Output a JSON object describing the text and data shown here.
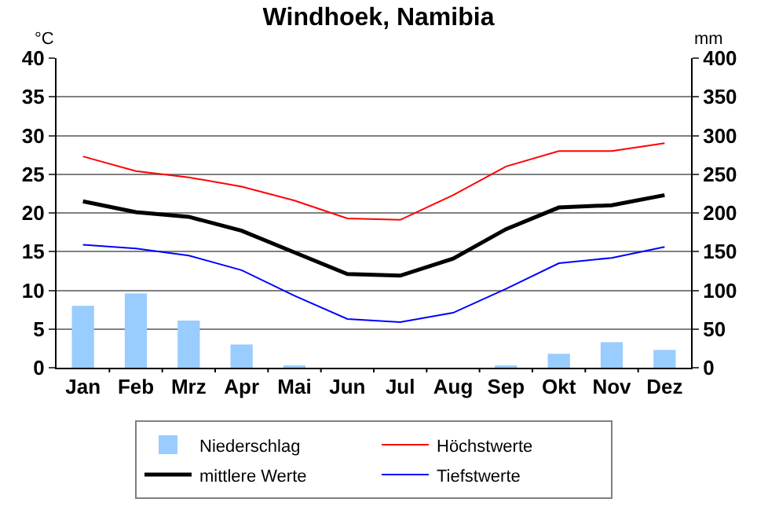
{
  "chart_data": {
    "type": "line",
    "title": "Windhoek, Namibia",
    "ylabel": "°C",
    "y2label": "mm",
    "categories": [
      "Jan",
      "Feb",
      "Mrz",
      "Apr",
      "Mai",
      "Jun",
      "Jul",
      "Aug",
      "Sep",
      "Okt",
      "Nov",
      "Dez"
    ],
    "series": [
      {
        "name": "Niederschlag",
        "type": "bar",
        "axis": "y2",
        "color": "#99ccff",
        "values": [
          80,
          96,
          61,
          30,
          3,
          0,
          0,
          0,
          3,
          18,
          33,
          23
        ]
      },
      {
        "name": "Höchstwerte",
        "color": "#ff0000",
        "values": [
          27.3,
          25.4,
          24.6,
          23.4,
          21.6,
          19.3,
          19.1,
          22.3,
          26.0,
          28.0,
          28.0,
          29.0
        ]
      },
      {
        "name": "mittlere Werte",
        "color": "#000000",
        "values": [
          21.5,
          20.1,
          19.5,
          17.7,
          14.9,
          12.1,
          11.9,
          14.1,
          17.9,
          20.7,
          21.0,
          22.3
        ]
      },
      {
        "name": "Tiefstwerte",
        "color": "#0000ff",
        "values": [
          15.9,
          15.4,
          14.5,
          12.6,
          9.3,
          6.3,
          5.9,
          7.1,
          10.2,
          13.5,
          14.2,
          15.6
        ]
      }
    ],
    "ylim": [
      0,
      40
    ],
    "yticks": [
      0,
      5,
      10,
      15,
      20,
      25,
      30,
      35,
      40
    ],
    "y2lim": [
      0,
      400
    ],
    "y2ticks": [
      0,
      50,
      100,
      150,
      200,
      250,
      300,
      350,
      400
    ],
    "grid": "y",
    "legend": "bottom",
    "marker": "none",
    "line_style": "solid"
  }
}
